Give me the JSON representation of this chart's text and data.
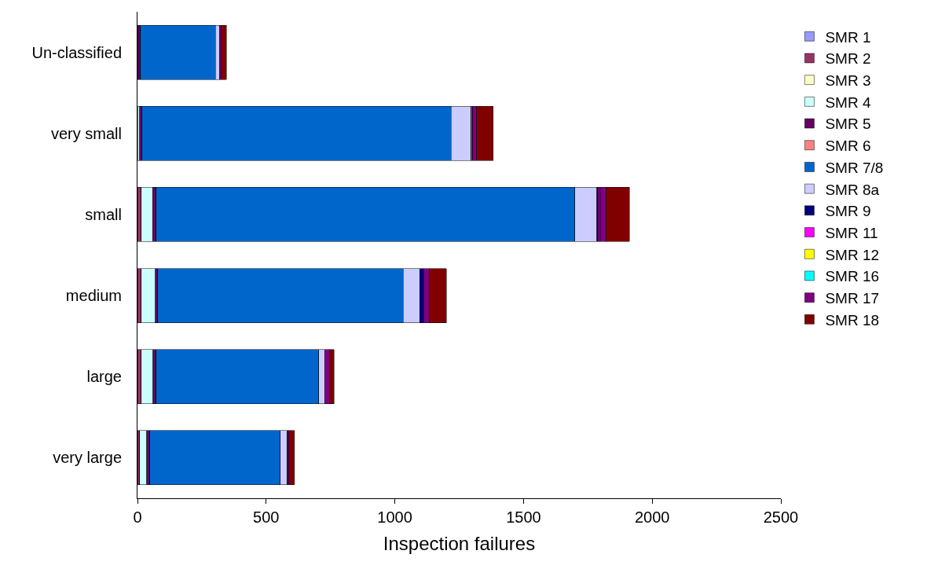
{
  "chart_data": {
    "type": "bar",
    "orientation": "horizontal",
    "stacked": true,
    "xlabel": "Inspection failures",
    "categories": [
      "Un-classified",
      "very small",
      "small",
      "medium",
      "large",
      "very large"
    ],
    "xlim": [
      0,
      2500
    ],
    "xticks": [
      0,
      500,
      1000,
      1500,
      2000,
      2500
    ],
    "grid": false,
    "legend": "right",
    "series": [
      {
        "name": "SMR 1",
        "color": "#9999ff",
        "values": [
          0,
          0,
          0,
          0,
          0,
          0
        ]
      },
      {
        "name": "SMR 2",
        "color": "#993366",
        "values": [
          0,
          0,
          15,
          15,
          15,
          9
        ]
      },
      {
        "name": "SMR 3",
        "color": "#ffffcc",
        "values": [
          0,
          0,
          0,
          0,
          0,
          0
        ]
      },
      {
        "name": "SMR 4",
        "color": "#ccffff",
        "values": [
          0,
          8,
          43,
          55,
          46,
          27
        ]
      },
      {
        "name": "SMR 5",
        "color": "#660066",
        "values": [
          12,
          10,
          15,
          9,
          12,
          12
        ]
      },
      {
        "name": "SMR 6",
        "color": "#ff8080",
        "values": [
          0,
          0,
          0,
          0,
          0,
          0
        ]
      },
      {
        "name": "SMR 7/8",
        "color": "#0066cc",
        "values": [
          291,
          1200,
          1627,
          954,
          632,
          507
        ]
      },
      {
        "name": "SMR 8a",
        "color": "#ccccff",
        "values": [
          15,
          79,
          85,
          64,
          22,
          27
        ]
      },
      {
        "name": "SMR 9",
        "color": "#000080",
        "values": [
          0,
          0,
          6,
          15,
          0,
          0
        ]
      },
      {
        "name": "SMR 11",
        "color": "#ff00ff",
        "values": [
          0,
          6,
          6,
          0,
          0,
          0
        ]
      },
      {
        "name": "SMR 12",
        "color": "#ffff00",
        "values": [
          0,
          0,
          0,
          0,
          0,
          0
        ]
      },
      {
        "name": "SMR 16",
        "color": "#00ffff",
        "values": [
          0,
          0,
          0,
          0,
          0,
          0
        ]
      },
      {
        "name": "SMR 17",
        "color": "#800080",
        "values": [
          8,
          15,
          24,
          21,
          18,
          6
        ]
      },
      {
        "name": "SMR 18",
        "color": "#800000",
        "values": [
          20,
          64,
          91,
          67,
          19,
          21
        ]
      }
    ]
  }
}
